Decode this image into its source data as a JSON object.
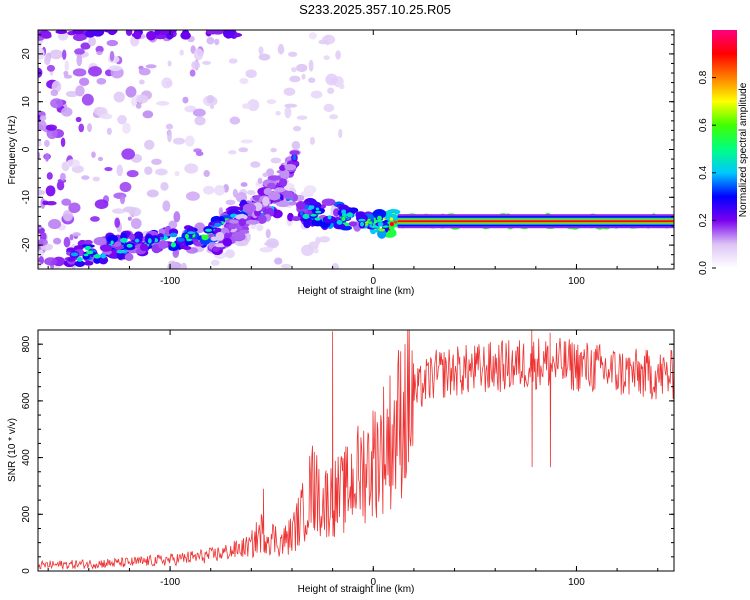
{
  "page": {
    "title": "S233.2025.357.10.25.R05"
  },
  "chart_data": [
    {
      "type": "heatmap",
      "xlabel": "Height of straight line (km)",
      "ylabel": "Frequency (Hz)",
      "xlim": [
        -165,
        148
      ],
      "ylim": [
        -25,
        25
      ],
      "xticks": [
        -100,
        0,
        100
      ],
      "yticks": [
        -20,
        -10,
        0,
        10,
        20
      ],
      "colorbar": {
        "label": "Normalized spectral amplitude",
        "range": [
          0.0,
          1.0
        ],
        "ticks": [
          0.0,
          0.2,
          0.4,
          0.6,
          0.8
        ],
        "tick_labels": [
          "0.0",
          "0.2",
          "0.4",
          "0.6",
          "0.8"
        ],
        "colors": [
          "#ffffff",
          "#dcc4f5",
          "#7a00f0",
          "#0000ff",
          "#00c8ff",
          "#00ff80",
          "#40ff00",
          "#ffff00",
          "#ff8000",
          "#ff0000",
          "#ff0080"
        ]
      },
      "ridge": {
        "description": "dominant frequency ridge",
        "x_km": [
          -150,
          -120,
          -100,
          -80,
          -60,
          -45,
          -30,
          -20,
          -10,
          0,
          10,
          20,
          60,
          100,
          148
        ],
        "freq_hz": [
          -22,
          -20,
          -19,
          -17,
          -13,
          -11,
          -13.5,
          -13.5,
          -15,
          -16,
          -15,
          -15,
          -15,
          -15,
          -15
        ],
        "amplitude": [
          0.45,
          0.4,
          0.45,
          0.5,
          0.45,
          0.35,
          0.4,
          0.55,
          0.45,
          0.6,
          0.85,
          0.95,
          0.95,
          0.95,
          0.95
        ]
      },
      "secondary_ridge": {
        "x_km": [
          -80,
          -65,
          -55,
          -45,
          -38
        ],
        "freq_hz": [
          -20,
          -16,
          -11,
          -6,
          -1
        ]
      }
    },
    {
      "type": "line",
      "xlabel": "Height of straight line (km)",
      "ylabel": "SNR (10 * v/v)",
      "xlim": [
        -165,
        148
      ],
      "ylim": [
        0,
        850
      ],
      "xticks": [
        -100,
        0,
        100
      ],
      "yticks": [
        0,
        200,
        400,
        600,
        800
      ],
      "line_color": "#ee3333",
      "series": [
        {
          "name": "SNR",
          "x": [
            -165,
            -140,
            -120,
            -100,
            -80,
            -70,
            -60,
            -55,
            -50,
            -45,
            -40,
            -35,
            -30,
            -25,
            -20,
            -15,
            -10,
            -5,
            0,
            5,
            10,
            15,
            20,
            25,
            30,
            40,
            50,
            60,
            70,
            80,
            90,
            100,
            110,
            120,
            130,
            140,
            148
          ],
          "y": [
            20,
            25,
            30,
            40,
            55,
            70,
            90,
            140,
            120,
            100,
            130,
            200,
            300,
            240,
            260,
            270,
            320,
            360,
            390,
            440,
            480,
            570,
            620,
            660,
            690,
            705,
            710,
            720,
            725,
            735,
            730,
            725,
            715,
            700,
            695,
            690,
            690
          ]
        }
      ],
      "spikes": [
        {
          "x": -54,
          "y": 290
        },
        {
          "x": -29,
          "y": 420
        },
        {
          "x": -20,
          "y": 845
        },
        {
          "x": 78,
          "y": 850
        },
        {
          "x": 87,
          "y": 840
        }
      ]
    }
  ]
}
